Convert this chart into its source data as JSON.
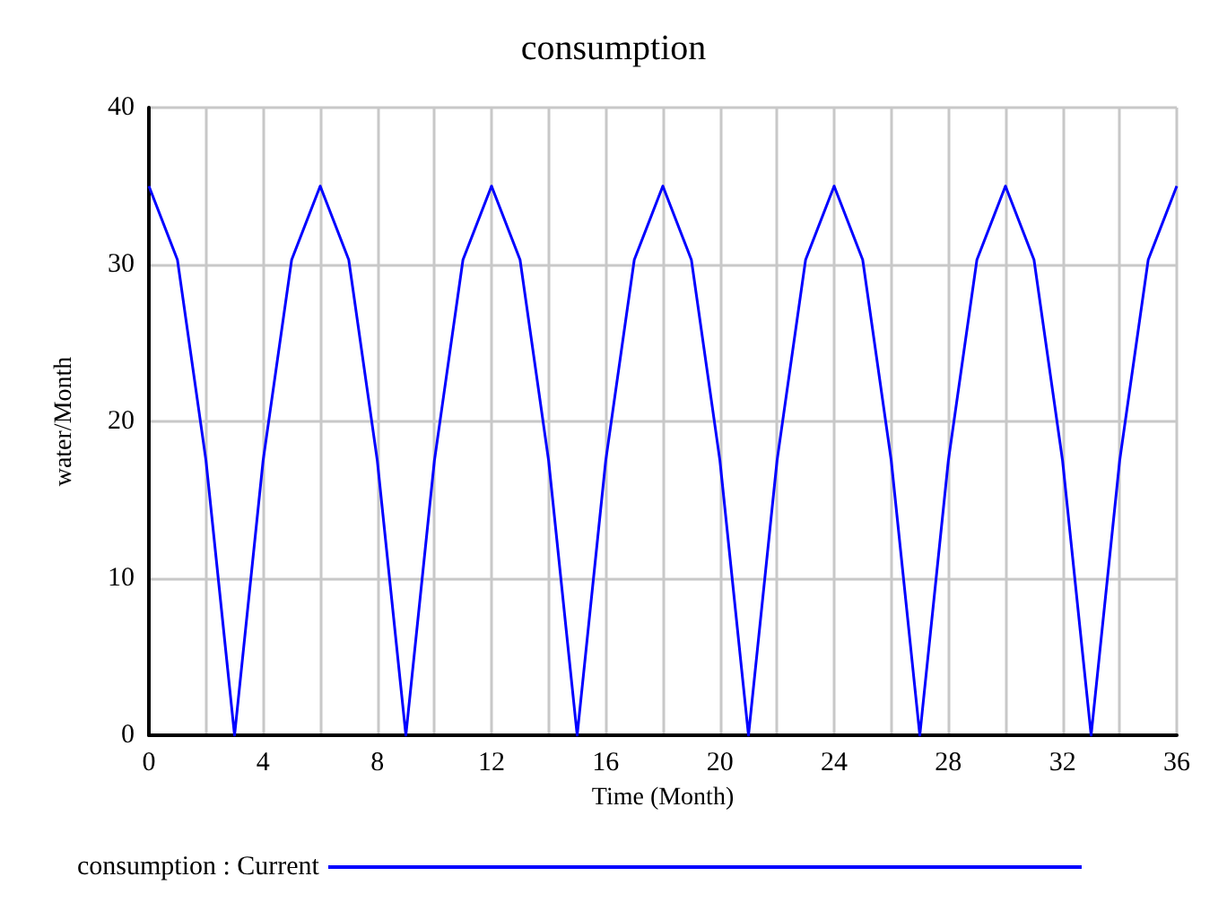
{
  "chart_data": {
    "type": "line",
    "title": "consumption",
    "xlabel": "Time (Month)",
    "ylabel": "water/Month",
    "x": [
      0,
      1,
      2,
      3,
      4,
      5,
      6,
      7,
      8,
      9,
      10,
      11,
      12,
      13,
      14,
      15,
      16,
      17,
      18,
      19,
      20,
      21,
      22,
      23,
      24,
      25,
      26,
      27,
      28,
      29,
      30,
      31,
      32,
      33,
      34,
      35,
      36
    ],
    "series": [
      {
        "name": "consumption : Current",
        "color": "#0000ff",
        "values": [
          35,
          30.3,
          17.5,
          0,
          17.5,
          30.3,
          35,
          30.3,
          17.5,
          0,
          17.5,
          30.3,
          35,
          30.3,
          17.5,
          0,
          17.5,
          30.3,
          35,
          30.3,
          17.5,
          0,
          17.5,
          30.3,
          35,
          30.3,
          17.5,
          0,
          17.5,
          30.3,
          35,
          30.3,
          17.5,
          0,
          17.5,
          30.3,
          35
        ]
      }
    ],
    "xlim": [
      0,
      36
    ],
    "xticks": [
      0,
      {
        "value": 2,
        "label": null
      },
      4,
      {
        "value": 6,
        "label": null
      },
      8,
      {
        "value": 10,
        "label": null
      },
      12,
      {
        "value": 14,
        "label": null
      },
      16,
      {
        "value": 18,
        "label": null
      },
      20,
      {
        "value": 22,
        "label": null
      },
      24,
      {
        "value": 26,
        "label": null
      },
      28,
      {
        "value": 30,
        "label": null
      },
      32,
      {
        "value": 34,
        "label": null
      },
      36
    ],
    "ylim": [
      0,
      40
    ],
    "yticks": [
      0,
      10,
      20,
      30,
      40
    ],
    "grid": true,
    "legend": "bottom",
    "marker": "none",
    "line_style": "solid"
  }
}
